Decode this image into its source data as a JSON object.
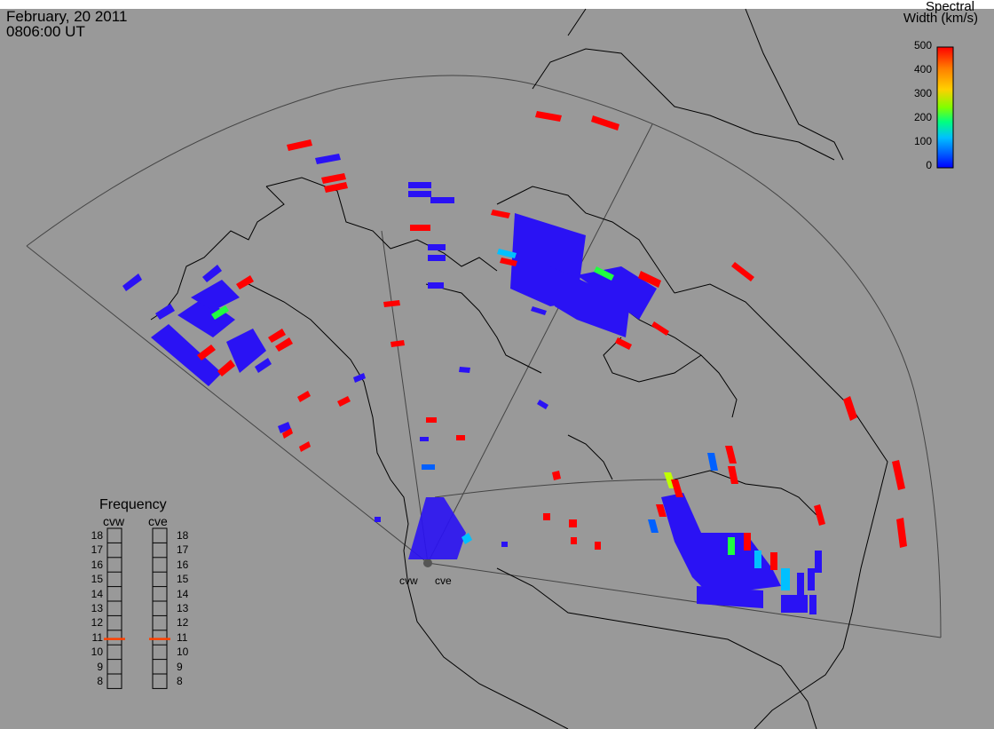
{
  "header": {
    "date": "February, 20 2011",
    "time": "0806:00 UT"
  },
  "colorbar": {
    "title_line1": "Spectral",
    "title_line2": "Width (km/s)",
    "ticks": [
      "500",
      "400",
      "300",
      "200",
      "100",
      "0"
    ],
    "colors": [
      "#ff0000",
      "#ff8000",
      "#ffd000",
      "#80ff00",
      "#00ff80",
      "#00c0ff",
      "#0060ff",
      "#0000ff"
    ]
  },
  "frequency": {
    "title": "Frequency",
    "col_left": "cvw",
    "col_right": "cve",
    "levels": [
      "18",
      "17",
      "16",
      "15",
      "14",
      "13",
      "12",
      "11",
      "10",
      "9",
      "8"
    ],
    "cvw_value": 10.9,
    "cve_value": 10.9,
    "marker_color": "#ff4000"
  },
  "radars": {
    "left": "cvw",
    "right": "cve"
  },
  "colors": {
    "background": "#999999",
    "land_outline": "#000000",
    "scatter_low": "#2a12f4",
    "scatter_high": "#ff0000"
  }
}
